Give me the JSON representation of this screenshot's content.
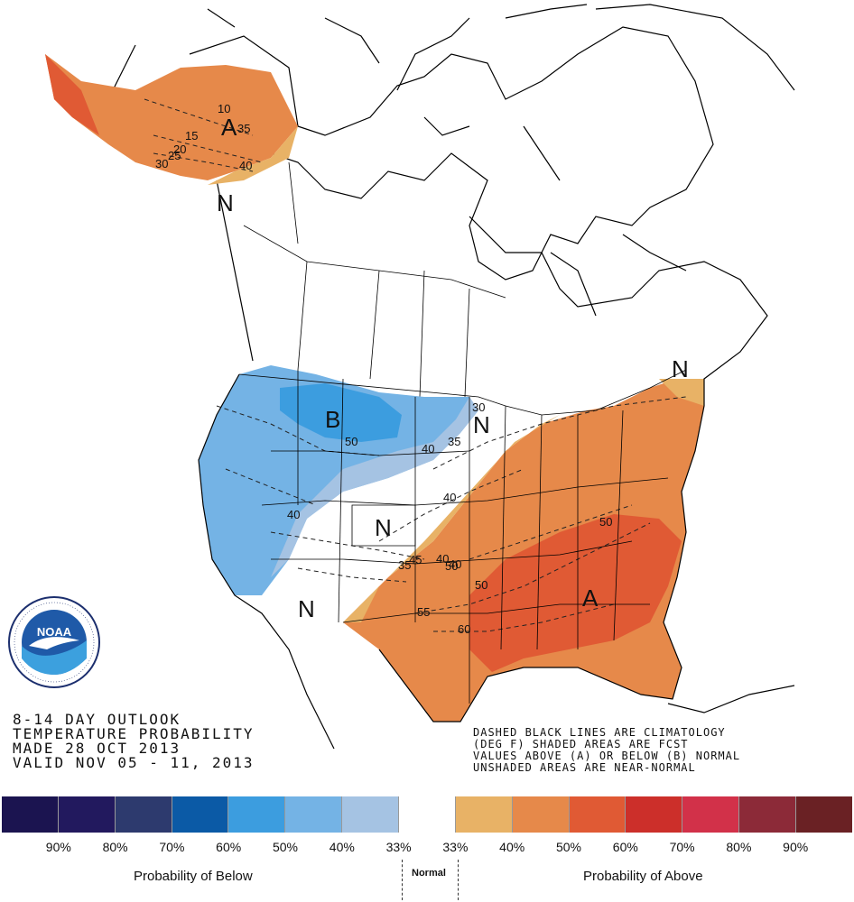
{
  "title_block": {
    "line1": "8-14 DAY OUTLOOK",
    "line2": "TEMPERATURE PROBABILITY",
    "line3": "MADE  28 OCT 2013",
    "line4": "VALID  NOV 05 - 11, 2013"
  },
  "notes": {
    "line1": "DASHED BLACK LINES ARE CLIMATOLOGY",
    "line2": "(DEG F) SHADED AREAS ARE FCST",
    "line3": "VALUES ABOVE (A) OR BELOW (B) NORMAL",
    "line4": "UNSHADED AREAS ARE NEAR-NORMAL"
  },
  "region_labels": {
    "alaska_above": "A",
    "alaska_normal": "N",
    "northwest_below": "B",
    "plains_normal": "N",
    "upper_midwest_normal": "N",
    "southwest_normal": "N",
    "northeast_normal": "N",
    "southeast_above": "A"
  },
  "contour_labels": {
    "ak_10": "10",
    "ak_15": "15",
    "ak_20": "20",
    "ak_25": "25",
    "ak_30": "30",
    "ak_35": "35",
    "ak_40": "40",
    "nw_50": "50",
    "nw_40": "40",
    "w_40": "40",
    "mw_40": "40",
    "mw_35": "35",
    "mw_30": "30",
    "c_40": "40",
    "c_45": "45",
    "c_35": "35",
    "s_40": "40",
    "s_50": "50",
    "se_50": "50",
    "se2_50": "50",
    "s_55": "55",
    "s_60": "60"
  },
  "legend": {
    "colors": [
      "#1b1450",
      "#22195e",
      "#2d3a6e",
      "#0b5aa6",
      "#3c9ddf",
      "#74b3e5",
      "#a5c3e3",
      "#ffffff",
      "#e8b266",
      "#e6894a",
      "#e05a34",
      "#cc2f2a",
      "#d23149",
      "#8c2a38",
      "#6a2124"
    ],
    "percentages": [
      "90%",
      "80%",
      "70%",
      "60%",
      "50%",
      "40%",
      "33%",
      "33%",
      "40%",
      "50%",
      "60%",
      "70%",
      "80%",
      "90%"
    ],
    "below_title": "Probability of Below",
    "normal_title": "Normal",
    "above_title": "Probability of Above"
  },
  "logo": {
    "name": "NOAA",
    "ring_text": "NATIONAL OCEANIC AND ATMOSPHERIC ADMINISTRATION · U.S. DEPARTMENT OF COMMERCE"
  }
}
